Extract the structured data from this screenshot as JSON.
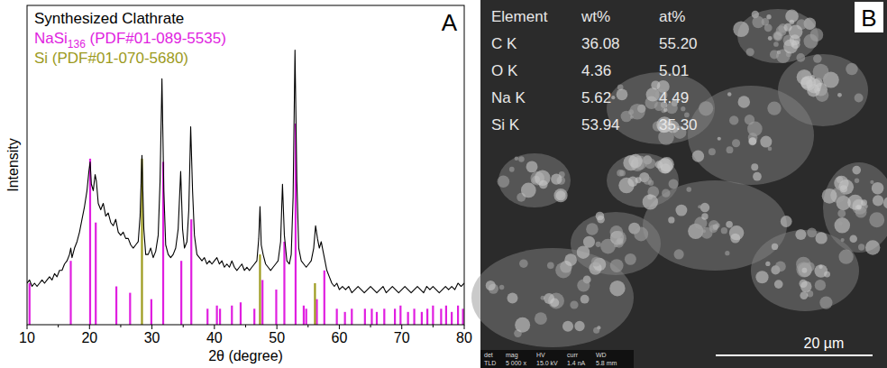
{
  "chart_data": {
    "type": "line",
    "annotation": "A",
    "x_label": "2θ (degree)",
    "y_label": "Intensity",
    "xlim": [
      10,
      80
    ],
    "xticks": [
      10,
      20,
      30,
      40,
      50,
      60,
      70,
      80
    ],
    "ylim": [
      0,
      100
    ],
    "tick_labels": "x",
    "grid": false,
    "legend": "upper left",
    "series": [
      {
        "name": "Synthesized Clathrate",
        "color": "#000000",
        "type": "line",
        "x": [
          10.0,
          10.4,
          10.8,
          11.2,
          11.6,
          12.0,
          12.4,
          12.8,
          13.2,
          13.6,
          14.0,
          14.4,
          14.8,
          15.2,
          15.6,
          16.0,
          16.4,
          16.8,
          17.0,
          17.2,
          17.6,
          18.0,
          18.4,
          18.8,
          19.2,
          19.6,
          19.9,
          20.1,
          20.3,
          20.6,
          20.9,
          21.1,
          21.4,
          21.8,
          22.2,
          22.6,
          23.0,
          23.4,
          23.8,
          24.2,
          24.6,
          25.0,
          25.4,
          25.8,
          26.2,
          26.6,
          27.0,
          27.4,
          27.8,
          28.1,
          28.4,
          28.7,
          29.0,
          29.4,
          29.8,
          30.2,
          30.6,
          31.0,
          31.3,
          31.6,
          31.9,
          32.2,
          32.6,
          33.0,
          33.4,
          33.8,
          34.2,
          34.6,
          34.9,
          35.2,
          35.6,
          35.9,
          36.2,
          36.5,
          36.8,
          37.2,
          37.6,
          38.0,
          38.4,
          38.8,
          39.2,
          39.6,
          40.0,
          40.4,
          40.8,
          41.2,
          41.6,
          42.0,
          42.4,
          42.8,
          43.2,
          43.6,
          44.0,
          44.4,
          44.8,
          45.2,
          45.6,
          46.0,
          46.4,
          46.8,
          47.1,
          47.3,
          47.5,
          47.8,
          48.2,
          48.6,
          49.0,
          49.4,
          49.8,
          50.2,
          50.6,
          50.9,
          51.2,
          51.6,
          52.0,
          52.3,
          52.6,
          52.9,
          53.2,
          53.5,
          53.9,
          54.3,
          54.7,
          55.1,
          55.5,
          55.9,
          56.2,
          56.5,
          56.8,
          57.1,
          57.4,
          57.7,
          58.0,
          58.4,
          58.8,
          59.2,
          59.6,
          60.0,
          60.5,
          61.0,
          61.5,
          62.0,
          62.5,
          63.0,
          63.5,
          64.0,
          64.5,
          65.0,
          65.5,
          66.0,
          66.5,
          67.0,
          67.5,
          68.0,
          68.5,
          69.0,
          69.5,
          70.0,
          70.5,
          71.0,
          71.5,
          72.0,
          72.5,
          73.0,
          73.5,
          74.0,
          74.5,
          75.0,
          75.5,
          76.0,
          76.5,
          77.0,
          77.5,
          78.0,
          78.5,
          79.0,
          79.5,
          80.0
        ],
        "values": [
          13,
          14,
          12,
          13,
          12,
          13,
          14,
          13,
          14,
          15,
          14,
          16,
          15,
          17,
          17,
          19,
          20,
          22,
          24,
          21,
          24,
          26,
          29,
          33,
          37,
          42,
          48,
          51,
          44,
          42,
          47,
          45,
          38,
          36,
          38,
          34,
          35,
          32,
          31,
          33,
          29,
          28,
          29,
          27,
          27,
          25,
          24,
          25,
          26,
          34,
          53,
          30,
          22,
          22,
          24,
          21,
          23,
          28,
          45,
          77,
          42,
          25,
          22,
          21,
          22,
          24,
          30,
          48,
          30,
          24,
          26,
          36,
          62,
          42,
          28,
          22,
          21,
          20,
          21,
          19,
          20,
          19,
          20,
          21,
          19,
          20,
          18,
          19,
          18,
          20,
          18,
          17,
          18,
          19,
          17,
          18,
          17,
          18,
          19,
          20,
          27,
          37,
          25,
          22,
          19,
          18,
          17,
          18,
          19,
          20,
          26,
          44,
          28,
          20,
          19,
          22,
          40,
          86,
          45,
          24,
          20,
          19,
          18,
          19,
          20,
          24,
          31,
          27,
          24,
          26,
          23,
          20,
          17,
          15,
          13,
          12,
          13,
          11,
          12,
          11,
          12,
          10,
          11,
          12,
          11,
          10,
          11,
          12,
          11,
          10,
          11,
          12,
          10,
          11,
          12,
          11,
          10,
          11,
          12,
          11,
          10,
          11,
          12,
          11,
          10,
          12,
          11,
          12,
          11,
          10,
          11,
          12,
          11,
          12,
          11,
          13,
          12,
          13
        ]
      },
      {
        "name": "NaSi136 (PDF#01-089-5535)",
        "color": "#e01ee0",
        "type": "stem",
        "x": [
          10.4,
          17.0,
          20.1,
          21.0,
          24.3,
          26.5,
          29.9,
          31.8,
          34.7,
          36.3,
          38.9,
          40.4,
          40.9,
          42.8,
          44.2,
          46.4,
          47.7,
          49.9,
          51.2,
          53.0,
          54.3,
          54.7,
          56.4,
          57.6,
          59.6,
          60.9,
          62.0,
          64.1,
          65.2,
          66.0,
          67.2,
          68.9,
          69.8,
          71.0,
          72.0,
          73.2,
          74.1,
          75.0,
          76.3,
          77.1,
          78.0,
          79.0,
          79.8
        ],
        "values": [
          13,
          20,
          52,
          32,
          12,
          10,
          8,
          51,
          20,
          33,
          5,
          6,
          5,
          6,
          7,
          5,
          14,
          11,
          26,
          63,
          6,
          5,
          8,
          17,
          5,
          4,
          5,
          5,
          5,
          4,
          5,
          5,
          6,
          4,
          5,
          4,
          5,
          6,
          5,
          6,
          4,
          6,
          5
        ]
      },
      {
        "name": "Si (PDF#01-070-5680)",
        "color": "#9c9a1c",
        "type": "stem",
        "x": [
          28.4,
          47.3,
          56.1
        ],
        "values": [
          52,
          22,
          13
        ]
      }
    ]
  },
  "panel_b": {
    "letter": "B",
    "eds_table": {
      "header": [
        "Element",
        "wt%",
        "at%"
      ],
      "rows": [
        [
          "C K",
          "36.08",
          "55.20"
        ],
        [
          "O K",
          "4.36",
          "5.01"
        ],
        [
          "Na K",
          "5.62",
          "4.49"
        ],
        [
          "Si K",
          "53.94",
          "35.30"
        ]
      ]
    },
    "scale_bar": "20 µm",
    "info_bar": {
      "header": [
        "det",
        "mag",
        "HV",
        "curr",
        "WD"
      ],
      "values": [
        "TLD",
        "5 000 x",
        "15.0 kV",
        "1.4 nA",
        "5.8 mm"
      ]
    }
  }
}
